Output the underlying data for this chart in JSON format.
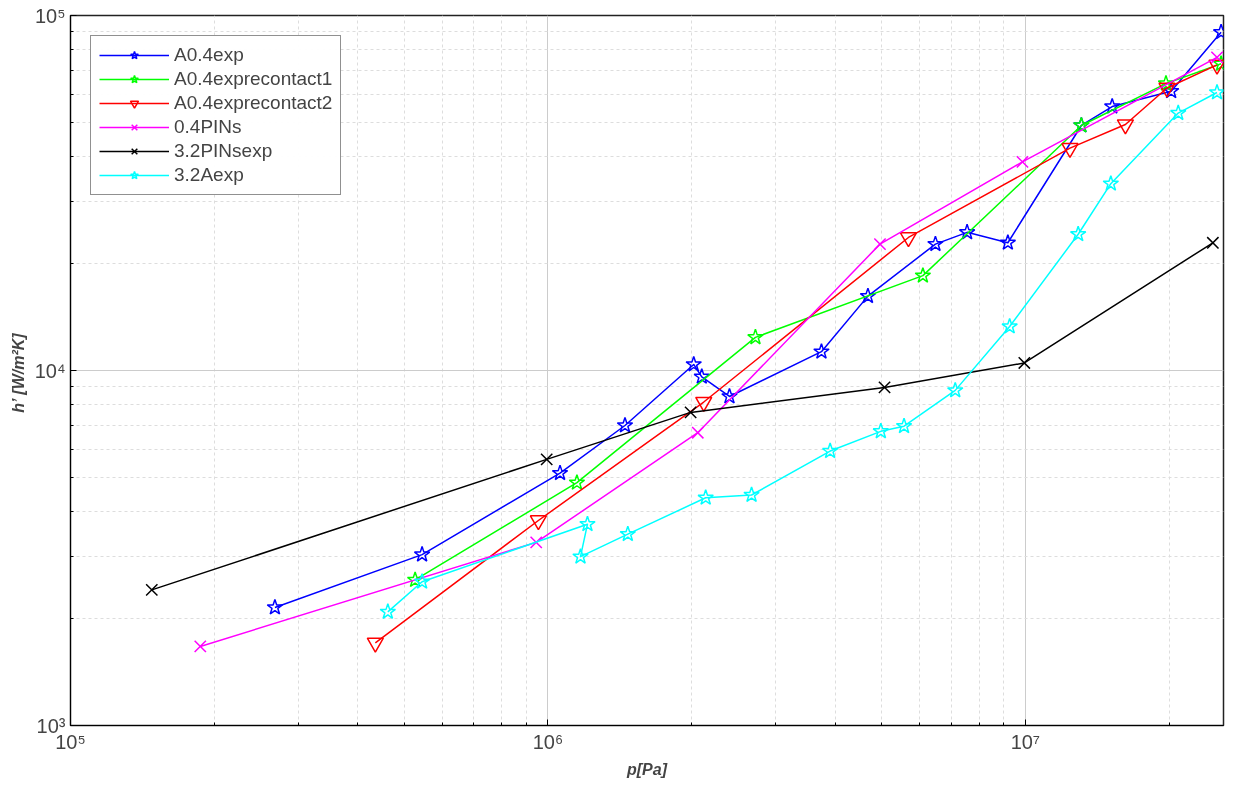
{
  "chart_data": {
    "type": "line",
    "xlabel": "p[Pa]",
    "ylabel": "h’  [W/m²K]",
    "log": "xy",
    "grid": true,
    "legend": "top left",
    "line_style": "solid",
    "xlim": [
      100000,
      26000000
    ],
    "ylim": [
      1000,
      100000
    ],
    "xticks": [
      {
        "value": 100000,
        "label": "10⁵"
      },
      {
        "value": 1000000,
        "label": "10⁶"
      },
      {
        "value": 10000000,
        "label": "10⁷"
      }
    ],
    "yticks": [
      {
        "value": 1000,
        "label": "10³"
      },
      {
        "value": 10000,
        "label": "10⁴"
      },
      {
        "value": 100000,
        "label": "10⁵"
      }
    ],
    "series": [
      {
        "name": "A0.4exp",
        "color": "#0000ff",
        "marker": "star",
        "x": [
          268000,
          545000,
          1060000,
          1450000,
          2020000,
          2100000,
          2400000,
          3740000,
          4680000,
          6480000,
          7550000,
          9190000,
          13100000,
          15200000,
          20200000,
          25700000
        ],
        "values": [
          2150,
          3030,
          5140,
          7000,
          10400,
          9600,
          8450,
          11300,
          16200,
          22700,
          24500,
          22900,
          49000,
          55400,
          61200,
          89700
        ]
      },
      {
        "name": "A0.4exprecontact1",
        "color": "#00ff00",
        "marker": "star",
        "x": [
          527000,
          1150000,
          2720000,
          6100000,
          13100000,
          19700000,
          25700000
        ],
        "values": [
          2570,
          4830,
          12400,
          18500,
          49000,
          64300,
          73100
        ]
      },
      {
        "name": "A0.4exprecontact2",
        "color": "#ff0000",
        "marker": "triangle",
        "x": [
          435000,
          955000,
          2120000,
          5690000,
          12400000,
          16200000,
          19800000,
          25200000
        ],
        "values": [
          1710,
          3780,
          8150,
          23700,
          42300,
          49300,
          62500,
          72600
        ]
      },
      {
        "name": "0.4PINs",
        "color": "#ff00ff",
        "marker": "cross",
        "x": [
          187000,
          945000,
          2060000,
          4960000,
          9860000,
          25200000
        ],
        "values": [
          1670,
          3280,
          6680,
          22700,
          38700,
          76200
        ]
      },
      {
        "name": "3.2PINsexp",
        "color": "#000000",
        "marker": "cross",
        "x": [
          148000,
          994000,
          1990000,
          5070000,
          9950000,
          24700000
        ],
        "values": [
          2410,
          5620,
          7620,
          8960,
          10500,
          22900
        ]
      },
      {
        "name": "3.2Aexp",
        "color": "#00ffff",
        "marker": "star",
        "x": [
          462000,
          545000,
          1210000,
          1170000,
          1470000,
          2140000,
          2670000,
          3900000,
          4980000,
          5570000,
          7130000,
          9270000,
          12900000,
          15100000,
          20900000,
          25200000
        ],
        "values": [
          2090,
          2540,
          3690,
          2990,
          3460,
          4380,
          4460,
          5930,
          6740,
          6970,
          8790,
          13300,
          24200,
          33600,
          53100,
          60700
        ]
      }
    ]
  }
}
